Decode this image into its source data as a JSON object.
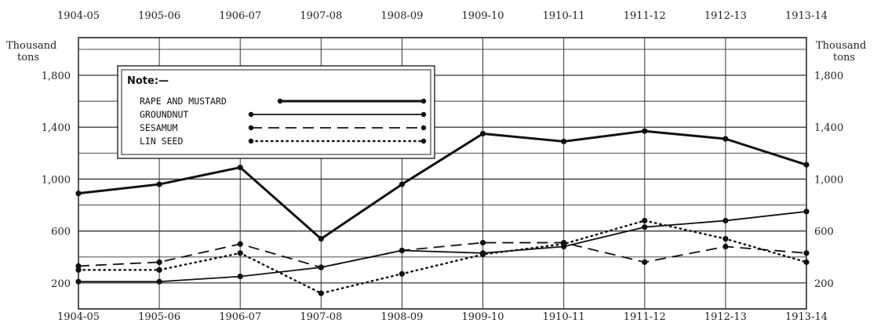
{
  "chart_data": {
    "type": "line",
    "categories": [
      "1904-05",
      "1905-06",
      "1906-07",
      "1907-08",
      "1908-09",
      "1909-10",
      "1910-11",
      "1911-12",
      "1912-13",
      "1913-14"
    ],
    "unit_left": [
      "Thousand",
      "tons"
    ],
    "unit_right": [
      "Thousand",
      "tons"
    ],
    "y_ticks": [
      200,
      600,
      1000,
      1400,
      1800
    ],
    "y_tick_labels": [
      "200",
      "600",
      "1,000",
      "1,400",
      "1,800"
    ],
    "ylim": [
      0,
      2090
    ],
    "grid": true,
    "legend": {
      "title": "Note:—",
      "placement": "top-left",
      "entries": [
        {
          "label": "RAPE AND MUSTARD"
        },
        {
          "label": "GROUNDNUT"
        },
        {
          "label": "SESAMUM"
        },
        {
          "label": "LIN SEED"
        }
      ]
    },
    "series": [
      {
        "name": "RAPE AND MUSTARD",
        "style": "solid-thick",
        "values": [
          890,
          960,
          1090,
          540,
          960,
          1350,
          1290,
          1370,
          1310,
          1110
        ]
      },
      {
        "name": "GROUNDNUT",
        "style": "solid",
        "values": [
          210,
          210,
          250,
          320,
          450,
          430,
          480,
          630,
          680,
          750
        ]
      },
      {
        "name": "SESAMUM",
        "style": "dashed",
        "values": [
          330,
          360,
          500,
          320,
          450,
          510,
          510,
          360,
          480,
          430
        ]
      },
      {
        "name": "LIN SEED",
        "style": "dotted",
        "values": [
          300,
          300,
          430,
          120,
          270,
          420,
          500,
          680,
          540,
          360
        ]
      }
    ]
  }
}
